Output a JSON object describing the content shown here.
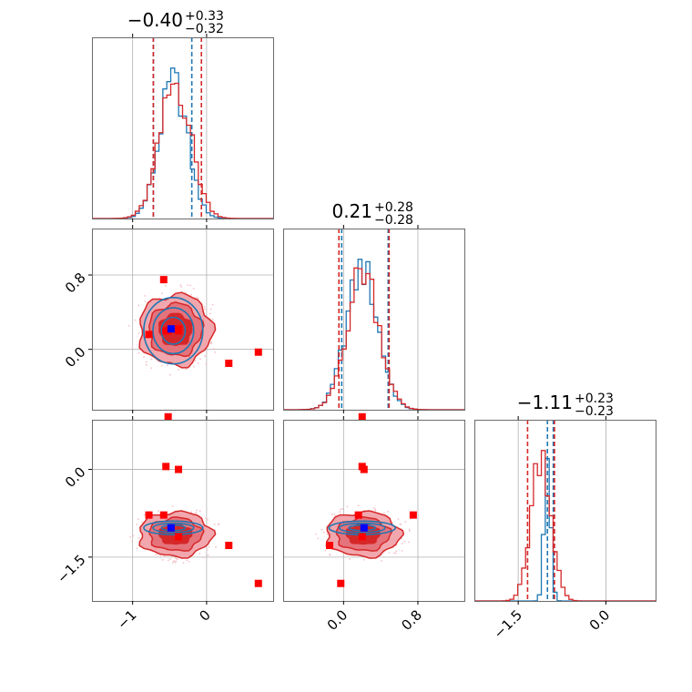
{
  "chart_data": {
    "type": "corner",
    "grid": true,
    "params": [
      {
        "title": {
          "median": "−0.40",
          "plus": "+0.33",
          "minus": "−0.32"
        },
        "range": [
          -1.55,
          0.9
        ]
      },
      {
        "title": {
          "median": "0.21",
          "plus": "+0.28",
          "minus": "−0.28"
        },
        "range": [
          -0.65,
          1.3
        ]
      },
      {
        "title": {
          "median": "−1.11",
          "plus": "+0.23",
          "minus": "−0.23"
        },
        "range": [
          -2.25,
          0.85
        ]
      }
    ],
    "ticks": [
      {
        "values": [
          -1,
          0
        ],
        "labels": [
          "−1",
          "0"
        ]
      },
      {
        "values": [
          0.0,
          0.8
        ],
        "labels": [
          "0.0",
          "0.8"
        ]
      },
      {
        "values": [
          -1.5,
          0.0
        ],
        "labels": [
          "−1.5",
          "0.0"
        ]
      }
    ],
    "series": [
      {
        "color": "#1f77b4",
        "marginals": [
          {
            "mean": -0.45,
            "sd": 0.19,
            "lines": [
              -0.72,
              -0.2
            ]
          },
          {
            "mean": 0.2,
            "sd": 0.17,
            "lines": [
              -0.02,
              0.48
            ]
          },
          {
            "mean": -1.0,
            "sd": 0.055,
            "lines": [
              -1.0,
              -0.9
            ]
          }
        ]
      },
      {
        "color": "#d62728",
        "marginals": [
          {
            "mean": -0.42,
            "sd": 0.21,
            "lines": [
              -0.72,
              -0.07
            ]
          },
          {
            "mean": 0.21,
            "sd": 0.17,
            "lines": [
              -0.05,
              0.49
            ]
          },
          {
            "mean": -1.11,
            "sd": 0.17,
            "lines": [
              -1.34,
              -0.88
            ]
          }
        ]
      }
    ],
    "points": {
      "red": [
        {
          "p1": -0.58,
          "p2": 0.75,
          "p3": -0.78
        },
        {
          "p1": -0.78,
          "p2": 0.16,
          "p3": -0.78
        },
        {
          "p1": -0.38,
          "p2": 0.2,
          "p3": -1.15
        },
        {
          "p1": 0.3,
          "p2": -0.15,
          "p3": -1.3
        },
        {
          "p1": 0.7,
          "p2": -0.03,
          "p3": -1.95
        },
        {
          "p1": -0.52,
          "p2": 0.2,
          "p3": 0.9
        },
        {
          "p1": -0.55,
          "p2": 0.2,
          "p3": 0.05
        },
        {
          "p1": -0.38,
          "p2": 0.22,
          "p3": 0.0
        }
      ],
      "blue": {
        "p1": -0.48,
        "p2": 0.22,
        "p3": -1.0
      }
    }
  }
}
